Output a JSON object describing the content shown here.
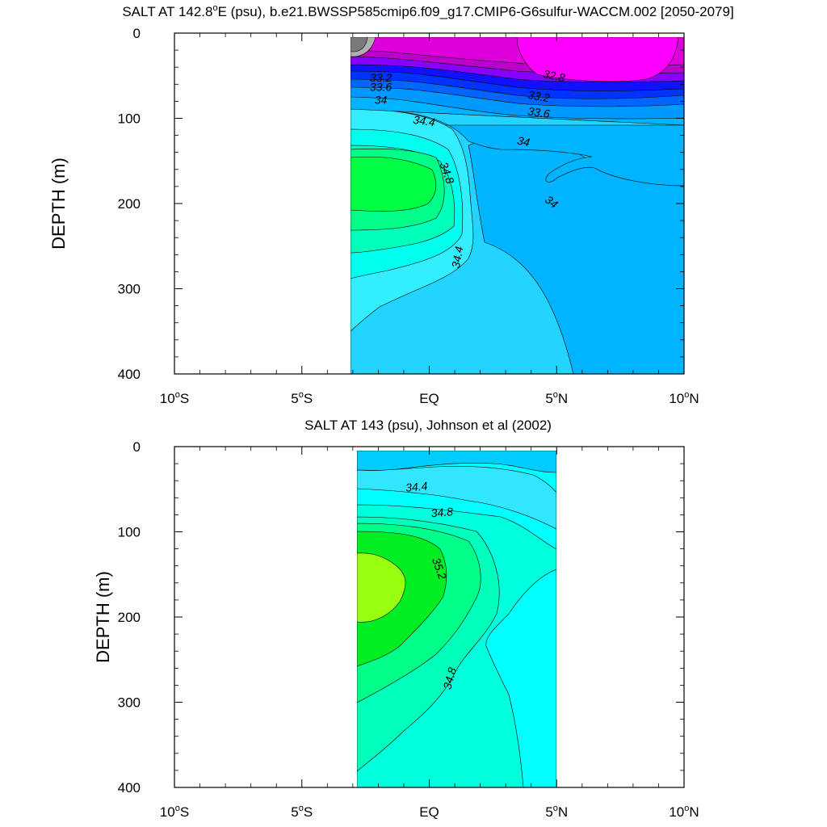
{
  "chart_data": [
    {
      "type": "contour",
      "title": "SALT AT 142.8°E (psu), b.e21.BWSSP585cmip6.f09_g17.CMIP6-G6sulfur-WACCM.002 [2050-2079]",
      "title_main": "SALT AT 142.8",
      "title_deg": "o",
      "title_rest": "E (psu), b.e21.BWSSP585cmip6.f09_g17.CMIP6-G6sulfur-WACCM.002 [2050-2079]",
      "ylabel": "DEPTH (m)",
      "xlim": [
        -10,
        10
      ],
      "ylim": [
        400,
        0
      ],
      "data_lat_range": [
        -3,
        10
      ],
      "data_depth_range": [
        5,
        400
      ],
      "x_ticks": [
        {
          "value": -10,
          "num": "10",
          "deg": "o",
          "hemi": "S"
        },
        {
          "value": -5,
          "num": "5",
          "deg": "o",
          "hemi": "S"
        },
        {
          "value": 0,
          "num": "EQ",
          "deg": "",
          "hemi": ""
        },
        {
          "value": 5,
          "num": "5",
          "deg": "o",
          "hemi": "N"
        },
        {
          "value": 10,
          "num": "10",
          "deg": "o",
          "hemi": "N"
        }
      ],
      "y_ticks": [
        {
          "value": 0,
          "label": "0"
        },
        {
          "value": 100,
          "label": "100"
        },
        {
          "value": 200,
          "label": "200"
        },
        {
          "value": 300,
          "label": "300"
        },
        {
          "value": 400,
          "label": "400"
        }
      ],
      "contour_labels": [
        {
          "text": "32.8",
          "lat": 4.9,
          "depth": 50,
          "rotation": 12
        },
        {
          "text": "33.2",
          "lat": -1.9,
          "depth": 52,
          "rotation": 0
        },
        {
          "text": "33.2",
          "lat": 4.3,
          "depth": 74,
          "rotation": 10
        },
        {
          "text": "33.6",
          "lat": -1.9,
          "depth": 63,
          "rotation": 0
        },
        {
          "text": "33.6",
          "lat": 4.3,
          "depth": 93,
          "rotation": 8
        },
        {
          "text": "34",
          "lat": -1.9,
          "depth": 78,
          "rotation": 0
        },
        {
          "text": "34",
          "lat": 3.7,
          "depth": 127,
          "rotation": 12
        },
        {
          "text": "34",
          "lat": 4.8,
          "depth": 198,
          "rotation": 38
        },
        {
          "text": "34.4",
          "lat": -0.2,
          "depth": 103,
          "rotation": 8
        },
        {
          "text": "34.8",
          "lat": 0.7,
          "depth": 164,
          "rotation": 70
        },
        {
          "text": "34.4",
          "lat": 1.1,
          "depth": 263,
          "rotation": -80
        }
      ],
      "colors": {
        "gray": "#7a7a7a",
        "lightgray": "#b0b0b0",
        "magenta_light": "#ff00ff",
        "magenta": "#dd00dd",
        "purple": "#bb00cc",
        "violet": "#8800ff",
        "blue": "#1111ff",
        "blue2": "#0033ff",
        "blue3": "#0066ff",
        "blue4": "#0099ff",
        "skyblue": "#00b4ff",
        "cyan_blue": "#22d4ff",
        "cyan": "#33eeff",
        "aqua": "#00ffee",
        "sea_green": "#00ffbb",
        "green_light": "#00ff88",
        "green": "#00ff44"
      }
    },
    {
      "type": "contour",
      "title": "SALT AT 143 (psu), Johnson et al (2002)",
      "title_main": "SALT AT 143 (psu), Johnson et al (2002)",
      "title_deg": "",
      "title_rest": "",
      "ylabel": "DEPTH (m)",
      "xlim": [
        -10,
        10
      ],
      "ylim": [
        400,
        0
      ],
      "data_lat_range": [
        -2.8,
        5
      ],
      "data_depth_range": [
        5,
        400
      ],
      "x_ticks": [
        {
          "value": -10,
          "num": "10",
          "deg": "o",
          "hemi": "S"
        },
        {
          "value": -5,
          "num": "5",
          "deg": "o",
          "hemi": "S"
        },
        {
          "value": 0,
          "num": "EQ",
          "deg": "",
          "hemi": ""
        },
        {
          "value": 5,
          "num": "5",
          "deg": "o",
          "hemi": "N"
        },
        {
          "value": 10,
          "num": "10",
          "deg": "o",
          "hemi": "N"
        }
      ],
      "y_ticks": [
        {
          "value": 0,
          "label": "0"
        },
        {
          "value": 100,
          "label": "100"
        },
        {
          "value": 200,
          "label": "200"
        },
        {
          "value": 300,
          "label": "300"
        },
        {
          "value": 400,
          "label": "400"
        }
      ],
      "contour_labels": [
        {
          "text": "34.4",
          "lat": -0.5,
          "depth": 47,
          "rotation": -5
        },
        {
          "text": "34.8",
          "lat": 0.5,
          "depth": 77,
          "rotation": -5
        },
        {
          "text": "35.2",
          "lat": 0.4,
          "depth": 143,
          "rotation": 70
        },
        {
          "text": "34.8",
          "lat": 0.8,
          "depth": 272,
          "rotation": -75
        }
      ],
      "colors": {
        "skyblue": "#00ccff",
        "cyan_blue": "#33e6ff",
        "cyan": "#00ffff",
        "aqua": "#00ffdd",
        "sea_green": "#00ffbb",
        "green_light": "#00ff88",
        "green": "#00ee22",
        "lime": "#99ff11"
      }
    }
  ]
}
